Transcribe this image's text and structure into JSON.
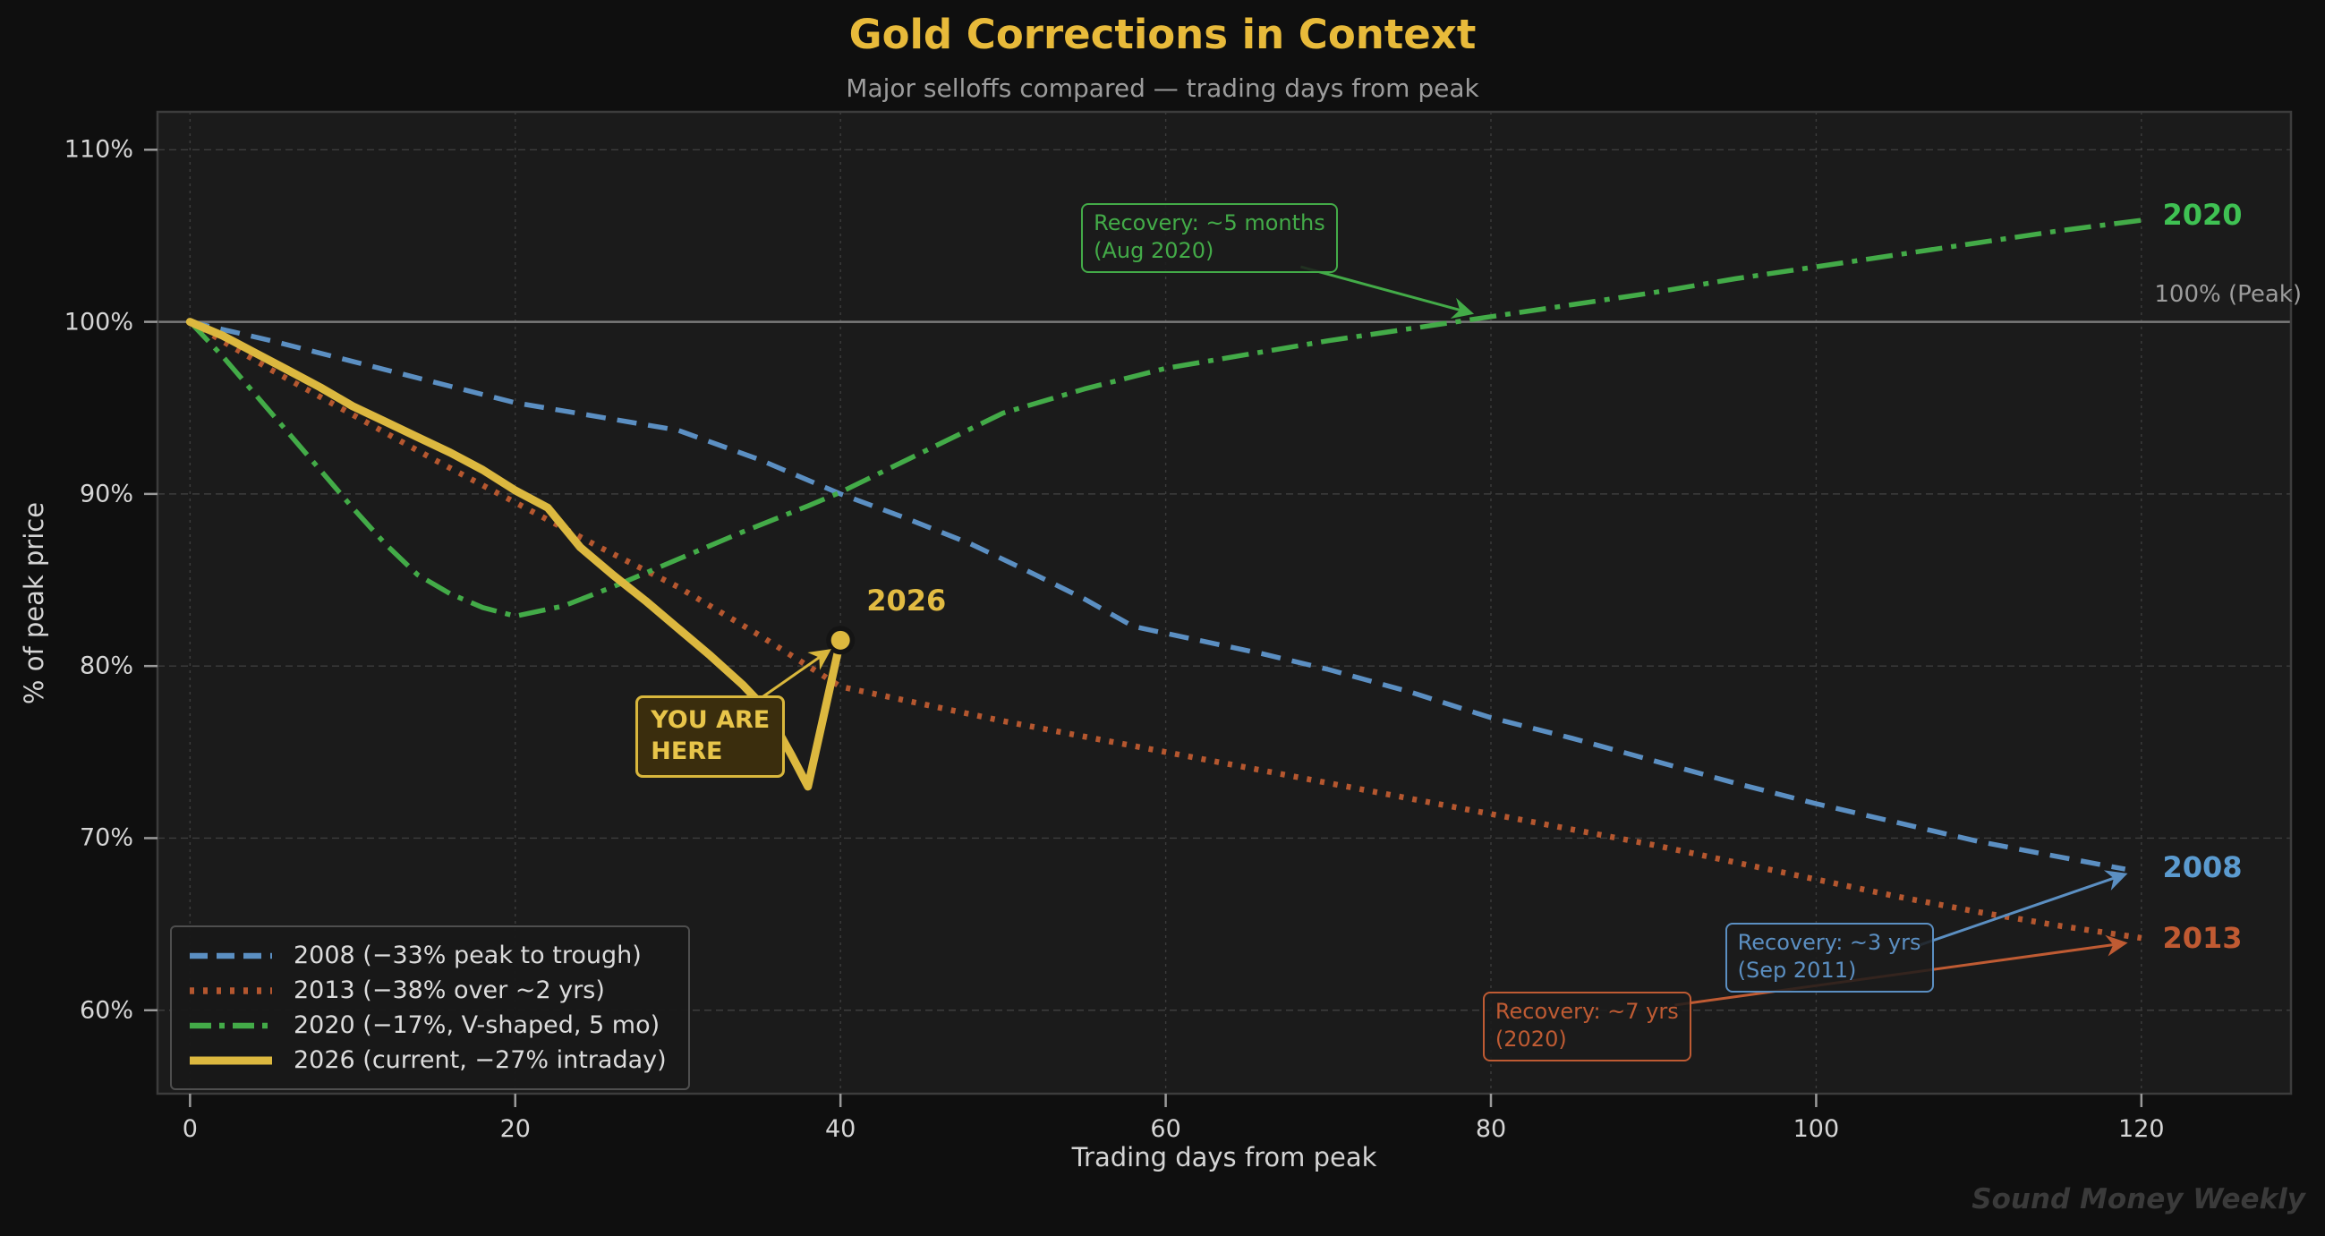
{
  "watermark": "Sound Money Weekly",
  "chart_data": {
    "type": "line",
    "title": "Gold Corrections in Context",
    "subtitle": "Major selloffs compared — trading days from peak",
    "xlabel": "Trading days from peak",
    "ylabel": "% of peak price",
    "xlim": [
      -2,
      129.2
    ],
    "ylim": [
      55.15,
      112.2
    ],
    "x_ticks": [
      0,
      20,
      40,
      60,
      80,
      100,
      120
    ],
    "y_ticks": [
      60,
      70,
      80,
      90,
      100,
      110
    ],
    "y_tick_suffix": "%",
    "grid": true,
    "legend_position": "lower-left",
    "peak_line": {
      "y": 100,
      "label": "100% (Peak)"
    },
    "series": [
      {
        "name": "2008 (−33% peak to trough)",
        "end_label": "2008",
        "color": "#5b8fc2",
        "label_color": "#5b9bd0",
        "style": "dashed",
        "width": 5.5,
        "dash": "22 13",
        "legend_dash": "20 10",
        "points": [
          [
            0,
            100
          ],
          [
            5,
            98.9
          ],
          [
            10,
            97.7
          ],
          [
            15,
            96.5
          ],
          [
            20,
            95.3
          ],
          [
            25,
            94.5
          ],
          [
            30,
            93.7
          ],
          [
            35,
            92.0
          ],
          [
            40,
            90.0
          ],
          [
            44,
            88.6
          ],
          [
            48,
            87.1
          ],
          [
            52,
            85.3
          ],
          [
            55,
            83.9
          ],
          [
            58,
            82.3
          ],
          [
            62,
            81.5
          ],
          [
            66,
            80.7
          ],
          [
            70,
            79.8
          ],
          [
            75,
            78.5
          ],
          [
            80,
            77.0
          ],
          [
            85,
            75.8
          ],
          [
            90,
            74.5
          ],
          [
            95,
            73.2
          ],
          [
            100,
            72.0
          ],
          [
            105,
            70.9
          ],
          [
            110,
            69.8
          ],
          [
            115,
            68.9
          ],
          [
            119,
            68.2
          ]
        ]
      },
      {
        "name": "2013 (−38% over ~2 yrs)",
        "end_label": "2013",
        "color": "#b5572f",
        "label_color": "#c05a32",
        "style": "dotted",
        "width": 6.5,
        "dash": "5 10",
        "legend_dash": "5 10",
        "points": [
          [
            0,
            100
          ],
          [
            5,
            97.2
          ],
          [
            10,
            94.6
          ],
          [
            15,
            92.0
          ],
          [
            20,
            89.5
          ],
          [
            25,
            87.0
          ],
          [
            30,
            84.6
          ],
          [
            35,
            81.8
          ],
          [
            40,
            78.8
          ],
          [
            45,
            77.8
          ],
          [
            50,
            76.8
          ],
          [
            55,
            75.9
          ],
          [
            60,
            75.0
          ],
          [
            65,
            74.1
          ],
          [
            70,
            73.2
          ],
          [
            75,
            72.3
          ],
          [
            80,
            71.4
          ],
          [
            85,
            70.5
          ],
          [
            90,
            69.6
          ],
          [
            95,
            68.6
          ],
          [
            100,
            67.6
          ],
          [
            105,
            66.6
          ],
          [
            110,
            65.7
          ],
          [
            115,
            64.9
          ],
          [
            120,
            64.2
          ]
        ]
      },
      {
        "name": "2020 (−17%, V-shaped, 5 mo)",
        "end_label": "2020",
        "color": "#43ab48",
        "label_color": "#3fc153",
        "style": "dashdot",
        "width": 5.5,
        "dash": "30 10 6 10",
        "legend_dash": "24 9 6 9",
        "points": [
          [
            0,
            100
          ],
          [
            2,
            98.0
          ],
          [
            4,
            95.8
          ],
          [
            6,
            93.6
          ],
          [
            8,
            91.4
          ],
          [
            10,
            89.2
          ],
          [
            12,
            87.1
          ],
          [
            14,
            85.3
          ],
          [
            16,
            84.2
          ],
          [
            18,
            83.4
          ],
          [
            20,
            82.9
          ],
          [
            23,
            83.5
          ],
          [
            26,
            84.6
          ],
          [
            30,
            86.2
          ],
          [
            34,
            87.8
          ],
          [
            38,
            89.3
          ],
          [
            40,
            90.1
          ],
          [
            45,
            92.4
          ],
          [
            50,
            94.7
          ],
          [
            55,
            96.1
          ],
          [
            60,
            97.3
          ],
          [
            65,
            98.1
          ],
          [
            70,
            98.9
          ],
          [
            75,
            99.6
          ],
          [
            80,
            100.3
          ],
          [
            85,
            101.0
          ],
          [
            90,
            101.7
          ],
          [
            95,
            102.5
          ],
          [
            100,
            103.2
          ],
          [
            105,
            103.9
          ],
          [
            110,
            104.6
          ],
          [
            115,
            105.3
          ],
          [
            120,
            105.9
          ]
        ]
      },
      {
        "name": "2026 (current, −27% intraday)",
        "end_label": "2026",
        "color": "#dcb83f",
        "label_color": "#e2bb42",
        "style": "solid",
        "width": 9,
        "dash": "",
        "legend_dash": "",
        "points": [
          [
            0,
            100
          ],
          [
            2,
            99.2
          ],
          [
            4,
            98.2
          ],
          [
            6,
            97.2
          ],
          [
            8,
            96.2
          ],
          [
            10,
            95.1
          ],
          [
            12,
            94.2
          ],
          [
            14,
            93.3
          ],
          [
            16,
            92.4
          ],
          [
            18,
            91.4
          ],
          [
            20,
            90.2
          ],
          [
            22,
            89.2
          ],
          [
            24,
            86.9
          ],
          [
            26,
            85.3
          ],
          [
            28,
            83.8
          ],
          [
            30,
            82.2
          ],
          [
            32,
            80.6
          ],
          [
            34,
            78.9
          ],
          [
            35,
            77.9
          ],
          [
            36,
            76.5
          ],
          [
            37,
            74.8
          ],
          [
            38,
            73.0
          ],
          [
            40,
            81.5
          ]
        ]
      }
    ],
    "current_point": {
      "series": "2026",
      "day": 40,
      "pct": 81.5
    },
    "series_labels": [
      {
        "text": "2020",
        "color": "#3fc153",
        "day": 121.3,
        "pct": 106.2
      },
      {
        "text": "2008",
        "color": "#5b9bd0",
        "day": 121.3,
        "pct": 68.3
      },
      {
        "text": "2013",
        "color": "#c05a32",
        "day": 121.3,
        "pct": 64.2
      },
      {
        "text": "2026",
        "color": "#e2bb42",
        "day": 41.6,
        "pct": 83.8
      }
    ],
    "annotations": [
      {
        "id": "recovery-2020",
        "lines": [
          "Recovery: ~5 months",
          "(Aug 2020)"
        ],
        "color": "#43ab48",
        "filled": false,
        "box": {
          "day": 54.8,
          "pct": 106.9
        },
        "arrow": {
          "from": {
            "day": 68.3,
            "pct": 103.2
          },
          "to": {
            "day": 78.8,
            "pct": 100.5
          }
        }
      },
      {
        "id": "recovery-2008",
        "lines": [
          "Recovery: ~3 yrs",
          "(Sep 2011)"
        ],
        "color": "#5b8fc2",
        "filled": false,
        "box": {
          "day": 94.4,
          "pct": 65.1
        },
        "arrow": {
          "from": {
            "day": 106.4,
            "pct": 63.8
          },
          "to": {
            "day": 119.0,
            "pct": 67.9
          }
        }
      },
      {
        "id": "recovery-2013",
        "lines": [
          "Recovery: ~7 yrs",
          "(2020)"
        ],
        "color": "#bf5b33",
        "filled": false,
        "box": {
          "day": 79.5,
          "pct": 61.1
        },
        "arrow": {
          "from": {
            "day": 91.3,
            "pct": 60.3
          },
          "to": {
            "day": 119.0,
            "pct": 63.9
          }
        }
      },
      {
        "id": "you-are-here",
        "lines": [
          "YOU ARE",
          "HERE"
        ],
        "color": "#d9b73c",
        "text_color": "#e8c54a",
        "filled": true,
        "box": {
          "day": 27.4,
          "pct": 78.3
        },
        "arrow": {
          "from": {
            "day": 35.2,
            "pct": 78.2
          },
          "to": {
            "day": 39.3,
            "pct": 80.9
          }
        }
      }
    ]
  }
}
